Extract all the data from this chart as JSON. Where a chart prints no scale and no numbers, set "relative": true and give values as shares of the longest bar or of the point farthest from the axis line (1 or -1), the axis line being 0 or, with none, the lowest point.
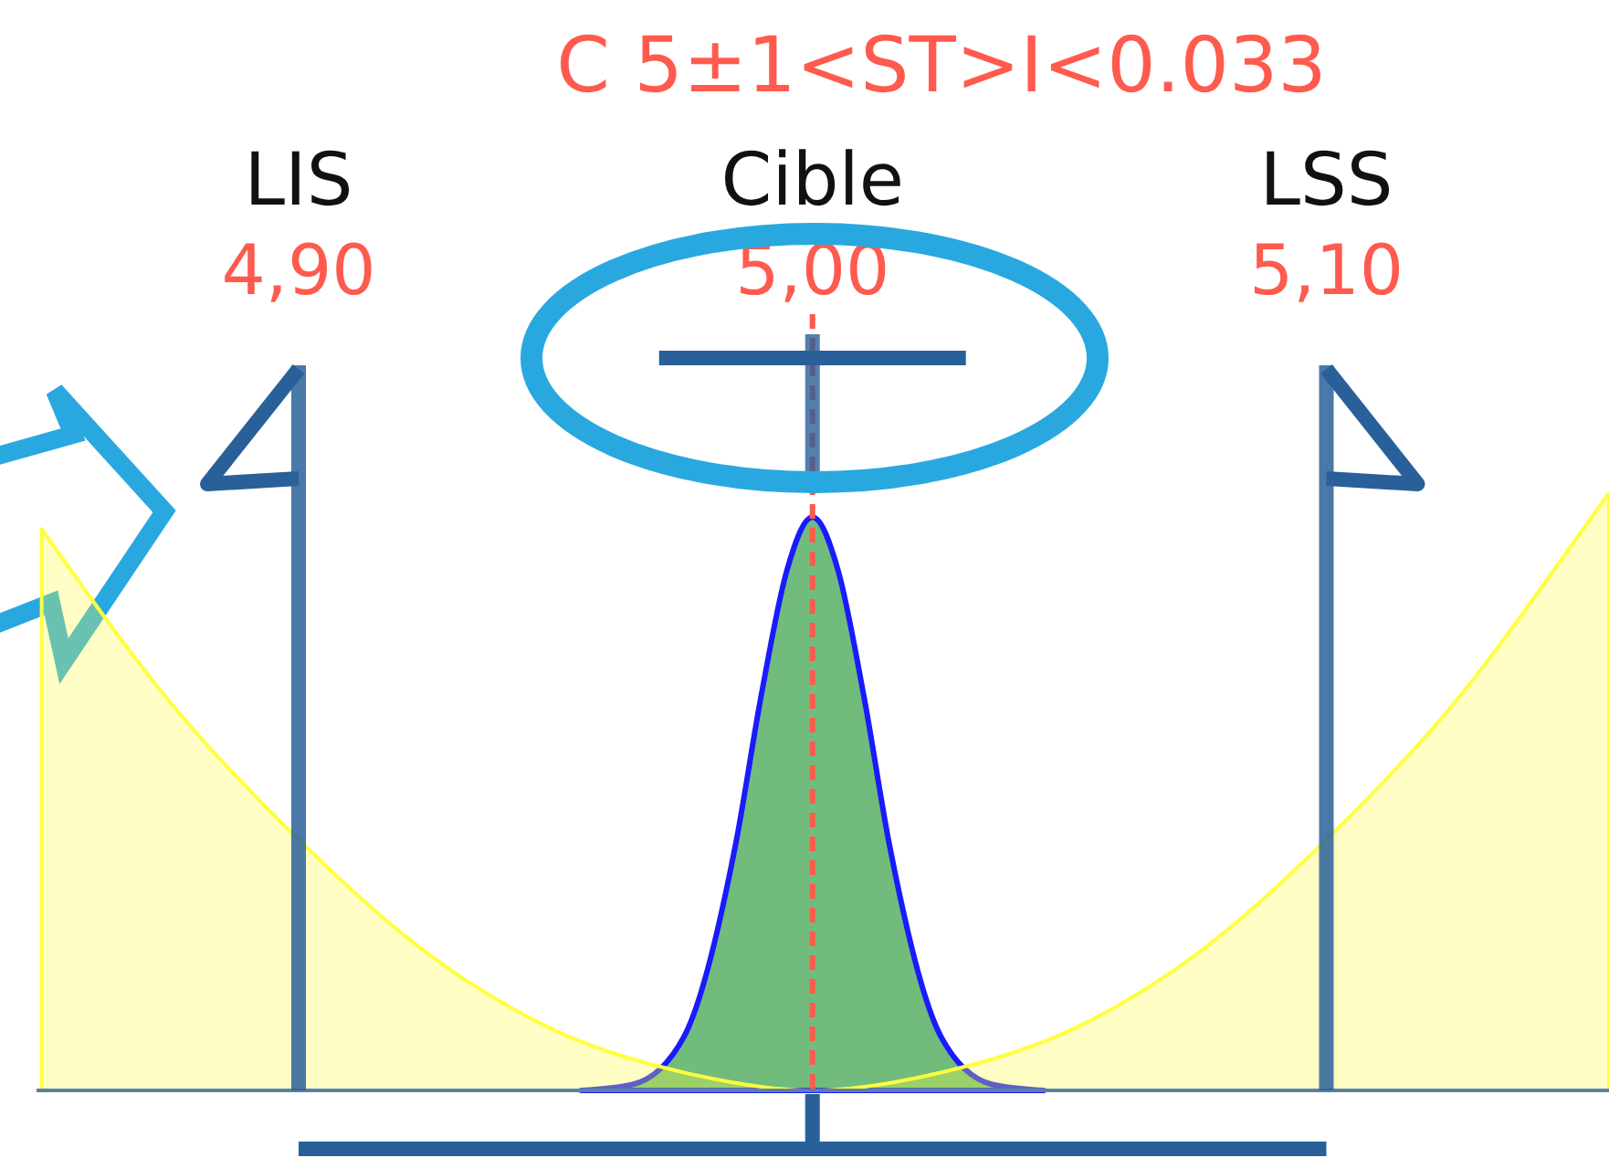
{
  "chart_data": {
    "type": "area",
    "title": "C 5±1<ST>I<0.033",
    "relative": true,
    "xlim": [
      4.849,
      5.155
    ],
    "xticks": [
      {
        "value": 4.9,
        "label": "4,90"
      },
      {
        "value": 5.0,
        "label": "5,00"
      },
      {
        "value": 5.1,
        "label": "5,10"
      }
    ],
    "series": [
      {
        "color": "#62b56e",
        "x": [
          4.955,
          4.965,
          4.975,
          4.985,
          4.99,
          4.995,
          5.0,
          5.005,
          5.01,
          5.015,
          5.025,
          5.035,
          5.045
        ],
        "values": [
          0,
          0.01,
          0.09,
          0.41,
          0.66,
          0.87,
          0.96,
          0.87,
          0.66,
          0.41,
          0.09,
          0.01,
          0
        ]
      },
      {
        "color": "#ffff40",
        "x": [
          4.85,
          4.875,
          4.9,
          4.925,
          4.95,
          4.975,
          5.0,
          5.025,
          5.05,
          5.075,
          5.1,
          5.125,
          5.15,
          5.155
        ],
        "values": [
          0.94,
          0.65,
          0.42,
          0.23,
          0.1,
          0.03,
          0,
          0.03,
          0.1,
          0.23,
          0.42,
          0.65,
          0.94,
          1.0
        ]
      }
    ],
    "ref_lines": [
      {
        "axis": "x",
        "value": 4.9,
        "label": "LIS",
        "color": "#2a6099"
      },
      {
        "axis": "x",
        "value": 5.0,
        "label": "Cible",
        "color": "#ff5a4e",
        "line_style": "dashed"
      },
      {
        "axis": "x",
        "value": 5.1,
        "label": "LSS",
        "color": "#2a6099"
      }
    ]
  }
}
